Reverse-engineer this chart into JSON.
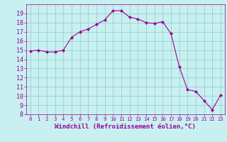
{
  "x": [
    0,
    1,
    2,
    3,
    4,
    5,
    6,
    7,
    8,
    9,
    10,
    11,
    12,
    13,
    14,
    15,
    16,
    17,
    18,
    19,
    20,
    21,
    22,
    23
  ],
  "y": [
    14.9,
    15.0,
    14.8,
    14.8,
    15.0,
    16.4,
    17.0,
    17.3,
    17.8,
    18.3,
    19.3,
    19.3,
    18.6,
    18.4,
    18.0,
    17.9,
    18.1,
    16.8,
    13.2,
    10.7,
    10.5,
    9.5,
    8.5,
    10.1
  ],
  "line_color": "#990099",
  "marker": "D",
  "markersize": 2.0,
  "linewidth": 0.8,
  "bg_color": "#c8f0f0",
  "grid_color": "#90c8c8",
  "xlabel": "Windchill (Refroidissement éolien,°C)",
  "xlabel_color": "#990099",
  "xlabel_fontsize": 6.5,
  "tick_color": "#990099",
  "ytick_fontsize": 6,
  "xtick_fontsize": 5.2,
  "ylim": [
    8,
    20
  ],
  "xlim": [
    -0.5,
    23.5
  ],
  "yticks": [
    8,
    9,
    10,
    11,
    12,
    13,
    14,
    15,
    16,
    17,
    18,
    19
  ],
  "xticks": [
    0,
    1,
    2,
    3,
    4,
    5,
    6,
    7,
    8,
    9,
    10,
    11,
    12,
    13,
    14,
    15,
    16,
    17,
    18,
    19,
    20,
    21,
    22,
    23
  ]
}
